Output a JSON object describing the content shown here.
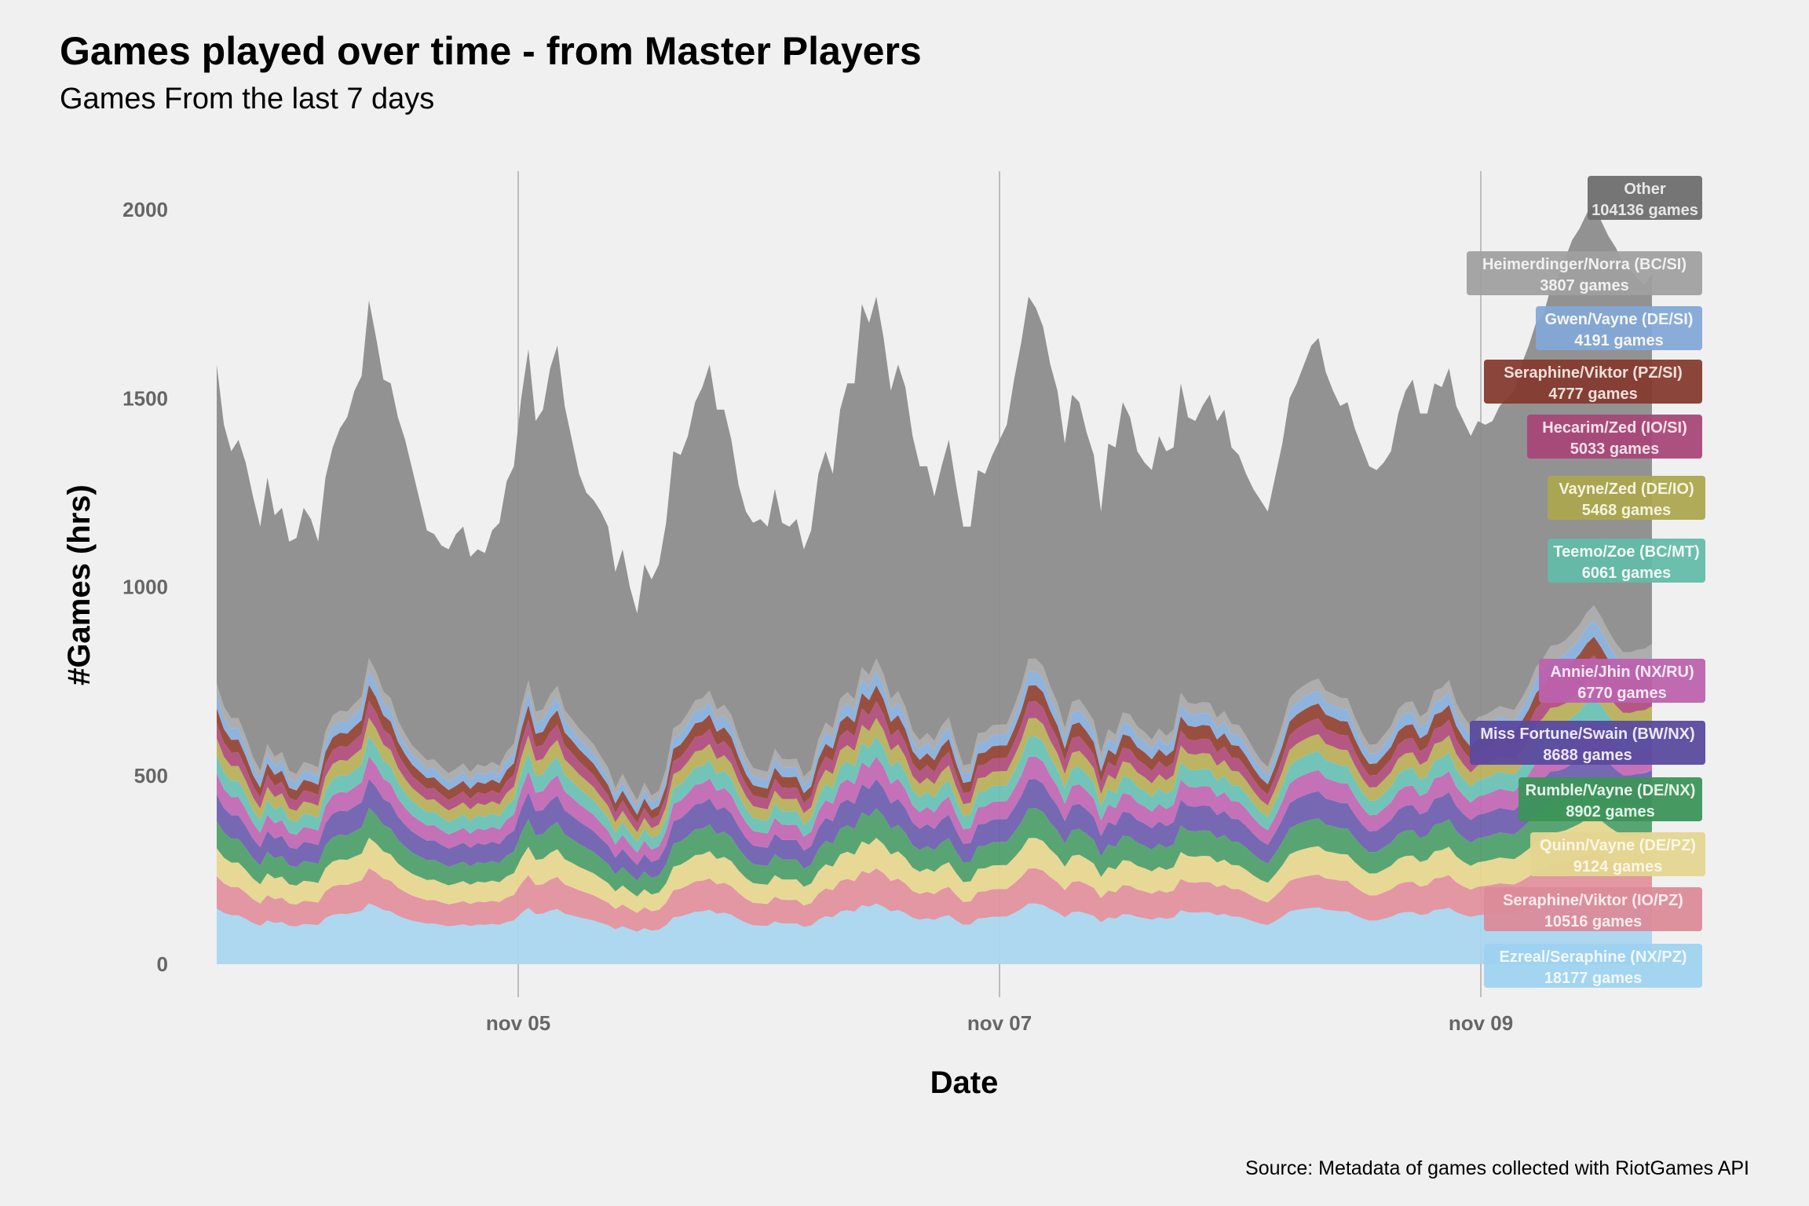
{
  "chart_data": {
    "type": "area",
    "stacked": true,
    "title": "Games played over time - from Master Players",
    "subtitle": "Games From the last 7 days",
    "xlabel": "Date",
    "ylabel": "#Games (hrs)",
    "caption": "Source: Metadata of games collected with RiotGames API",
    "ylim": [
      0,
      2100
    ],
    "yticks": [
      0,
      500,
      1000,
      1500,
      2000
    ],
    "xticks": [
      "nov 05",
      "nov 07",
      "nov 09"
    ],
    "legend": "direct-labels-right",
    "grid": "vertical-only",
    "total": [
      1590,
      1430,
      1360,
      1390,
      1330,
      1240,
      1160,
      1290,
      1190,
      1210,
      1120,
      1130,
      1210,
      1180,
      1120,
      1290,
      1370,
      1420,
      1450,
      1520,
      1560,
      1760,
      1660,
      1550,
      1540,
      1450,
      1390,
      1310,
      1230,
      1150,
      1140,
      1110,
      1100,
      1140,
      1160,
      1080,
      1100,
      1090,
      1150,
      1170,
      1280,
      1320,
      1500,
      1630,
      1440,
      1470,
      1580,
      1640,
      1480,
      1390,
      1300,
      1250,
      1230,
      1200,
      1160,
      1040,
      1100,
      1000,
      930,
      1060,
      1020,
      1060,
      1170,
      1360,
      1350,
      1400,
      1490,
      1530,
      1590,
      1470,
      1470,
      1390,
      1270,
      1200,
      1170,
      1180,
      1160,
      1260,
      1170,
      1160,
      1180,
      1100,
      1150,
      1300,
      1360,
      1300,
      1470,
      1540,
      1540,
      1750,
      1700,
      1770,
      1660,
      1520,
      1590,
      1530,
      1400,
      1320,
      1320,
      1240,
      1320,
      1390,
      1270,
      1160,
      1160,
      1310,
      1300,
      1350,
      1390,
      1430,
      1550,
      1650,
      1770,
      1740,
      1690,
      1590,
      1520,
      1380,
      1510,
      1490,
      1410,
      1350,
      1200,
      1380,
      1370,
      1490,
      1450,
      1360,
      1330,
      1310,
      1400,
      1360,
      1370,
      1540,
      1450,
      1440,
      1480,
      1510,
      1440,
      1470,
      1370,
      1350,
      1300,
      1260,
      1230,
      1200,
      1290,
      1380,
      1500,
      1540,
      1590,
      1640,
      1660,
      1570,
      1520,
      1480,
      1490,
      1420,
      1370,
      1320,
      1310,
      1330,
      1360,
      1460,
      1520,
      1550,
      1460,
      1460,
      1540,
      1530,
      1580,
      1480,
      1440,
      1400,
      1440,
      1430,
      1440,
      1480,
      1500,
      1520,
      1590,
      1640,
      1700,
      1720,
      1790,
      1820,
      1870,
      1920,
      1950,
      1990,
      2020,
      1970,
      1930,
      1900,
      1860,
      1840,
      1820,
      1800,
      1830
    ],
    "series": [
      {
        "name": "Ezreal/Seraphine (NX/PZ)",
        "games": 18177,
        "color": "#a9d6ef",
        "weight": 18177
      },
      {
        "name": "Seraphine/Viktor (IO/PZ)",
        "games": 10516,
        "color": "#e0919e",
        "weight": 10516
      },
      {
        "name": "Quinn/Vayne (DE/PZ)",
        "games": 9124,
        "color": "#e7d690",
        "weight": 9124
      },
      {
        "name": "Rumble/Vayne (DE/NX)",
        "games": 8902,
        "color": "#4fa06c",
        "weight": 8902
      },
      {
        "name": "Miss Fortune/Swain (BW/NX)",
        "games": 8688,
        "color": "#7060b0",
        "weight": 8688
      },
      {
        "name": "Annie/Jhin (NX/RU)",
        "games": 6770,
        "color": "#c169b4",
        "weight": 6770
      },
      {
        "name": "Teemo/Zoe (BC/MT)",
        "games": 6061,
        "color": "#6cc1b4",
        "weight": 6061
      },
      {
        "name": "Vayne/Zed (DE/IO)",
        "games": 5468,
        "color": "#b8b05a",
        "weight": 5468
      },
      {
        "name": "Hecarim/Zed (IO/SI)",
        "games": 5033,
        "color": "#b04f7c",
        "weight": 5033
      },
      {
        "name": "Seraphine/Viktor (PZ/SI)",
        "games": 4777,
        "color": "#944636",
        "weight": 4777
      },
      {
        "name": "Gwen/Vayne (DE/SI)",
        "games": 4191,
        "color": "#88b0dc",
        "weight": 4191
      },
      {
        "name": "Heimerdinger/Norra (BC/SI)",
        "games": 3807,
        "color": "#a9a9a9",
        "weight": 3807
      },
      {
        "name": "Other",
        "games": 104136,
        "color": "#8c8c8c",
        "weight": 104136
      }
    ],
    "labels": [
      {
        "title": "Other",
        "value": "104136 games",
        "fill": "#6e6e6e",
        "text": "#e8e8e8"
      },
      {
        "title": "Heimerdinger/Norra (BC/SI)",
        "value": "3807 games",
        "fill": "#a0a0a0",
        "text": "#f0f0f0"
      },
      {
        "title": "Gwen/Vayne (DE/SI)",
        "value": "4191 games",
        "fill": "#83a9d6",
        "text": "#f5f5f5"
      },
      {
        "title": "Seraphine/Viktor (PZ/SI)",
        "value": "4777 games",
        "fill": "#853b30",
        "text": "#f0e0da"
      },
      {
        "title": "Hecarim/Zed (IO/SI)",
        "value": "5033 games",
        "fill": "#a84878",
        "text": "#f5e0ea"
      },
      {
        "title": "Vayne/Zed (DE/IO)",
        "value": "5468 games",
        "fill": "#aca650",
        "text": "#f5f3dc"
      },
      {
        "title": "Teemo/Zoe (BC/MT)",
        "value": "6061 games",
        "fill": "#64baa9",
        "text": "#effaf7"
      },
      {
        "title": "Annie/Jhin (NX/RU)",
        "value": "6770 games",
        "fill": "#bc62ad",
        "text": "#f7e8f4"
      },
      {
        "title": "Miss Fortune/Swain (BW/NX)",
        "value": "8688 games",
        "fill": "#5b4a9e",
        "text": "#ece8f7"
      },
      {
        "title": "Rumble/Vayne (DE/NX)",
        "value": "8902 games",
        "fill": "#3c9458",
        "text": "#e6f5ea"
      },
      {
        "title": "Quinn/Vayne (DE/PZ)",
        "value": "9124 games",
        "fill": "#e4d590",
        "text": "#fbf7e6"
      },
      {
        "title": "Seraphine/Viktor (IO/PZ)",
        "value": "10516 games",
        "fill": "#db8b98",
        "text": "#fbecee"
      },
      {
        "title": "Ezreal/Seraphine (NX/PZ)",
        "value": "18177 games",
        "fill": "#9ed2ef",
        "text": "#f0f8fd"
      }
    ]
  }
}
